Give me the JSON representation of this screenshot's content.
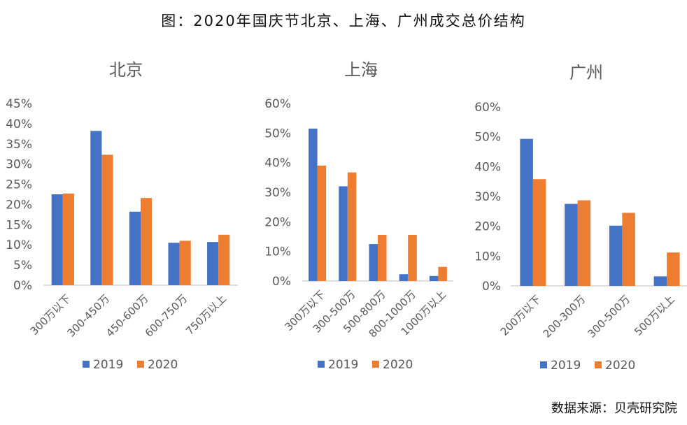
{
  "title": "图：2020年国庆节北京、上海、广州成交总价结构",
  "source": "数据来源：贝壳研究院",
  "colors": {
    "s2019": "#4472C4",
    "s2020": "#ED7D31",
    "axis": "#BFBFBF",
    "text": "#595959"
  },
  "chart_data": [
    {
      "type": "bar",
      "title": "北京",
      "categories": [
        "300万以下",
        "300-450万",
        "450-600万",
        "600-750万",
        "750万以上"
      ],
      "series": [
        {
          "name": "2019",
          "values": [
            22.5,
            38.2,
            18.2,
            10.5,
            10.7
          ]
        },
        {
          "name": "2020",
          "values": [
            22.7,
            32.3,
            21.6,
            11.0,
            12.5
          ]
        }
      ],
      "ylim": [
        0,
        45
      ],
      "yticks": [
        "0%",
        "5%",
        "10%",
        "15%",
        "20%",
        "25%",
        "30%",
        "35%",
        "40%",
        "45%"
      ],
      "legend": "bottom"
    },
    {
      "type": "bar",
      "title": "上海",
      "categories": [
        "300万以下",
        "300-500万",
        "500-800万",
        "800-1000万",
        "1000万以上"
      ],
      "series": [
        {
          "name": "2019",
          "values": [
            51.5,
            32.0,
            12.5,
            2.3,
            1.7
          ]
        },
        {
          "name": "2020",
          "values": [
            39.0,
            36.7,
            15.6,
            15.6,
            4.8
          ]
        }
      ],
      "ylim": [
        0,
        60
      ],
      "yticks": [
        "0%",
        "10%",
        "20%",
        "30%",
        "40%",
        "50%",
        "60%"
      ],
      "legend": "bottom"
    },
    {
      "type": "bar",
      "title": "广州",
      "categories": [
        "200万以下",
        "200-300万",
        "300-500万",
        "500万以上"
      ],
      "series": [
        {
          "name": "2019",
          "values": [
            49.3,
            27.5,
            20.2,
            3.2
          ]
        },
        {
          "name": "2020",
          "values": [
            35.8,
            28.7,
            24.5,
            11.2
          ]
        }
      ],
      "ylim": [
        0,
        60
      ],
      "yticks": [
        "0%",
        "10%",
        "20%",
        "30%",
        "40%",
        "50%",
        "60%"
      ],
      "legend": "bottom"
    }
  ]
}
